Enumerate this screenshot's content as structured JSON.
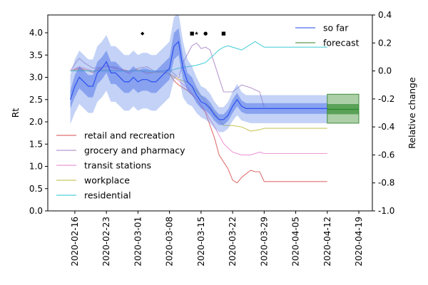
{
  "chart_data": {
    "type": "line",
    "title": "",
    "xlabel": "",
    "ylabel": "Rt",
    "y2label": "Relative change",
    "ylim": [
      0,
      4.4
    ],
    "y2lim": [
      -1.0,
      0.4
    ],
    "xlim": [
      "2020-02-10",
      "2020-04-22"
    ],
    "yticks": [
      "0.0",
      "0.5",
      "1.0",
      "1.5",
      "2.0",
      "2.5",
      "3.0",
      "3.5",
      "4.0"
    ],
    "y2ticks": [
      "-1.0",
      "-0.8",
      "-0.6",
      "-0.4",
      "-0.2",
      "0.0",
      "0.2",
      "0.4"
    ],
    "xticks": [
      "2020-02-16",
      "2020-02-23",
      "2020-03-01",
      "2020-03-08",
      "2020-03-15",
      "2020-03-22",
      "2020-03-29",
      "2020-04-05",
      "2020-04-12",
      "2020-04-19"
    ],
    "grid": false,
    "legend_rt": {
      "placement": "top-right",
      "entries": [
        {
          "label": "so far",
          "color": "#4a6cf0"
        },
        {
          "label": "forecast",
          "color": "#5a9e50"
        }
      ]
    },
    "legend_mobility": {
      "placement": "lower-left",
      "entries": [
        {
          "label": "retail and recreation",
          "color": "#e07070"
        },
        {
          "label": "grocery and pharmacy",
          "color": "#b79ad0"
        },
        {
          "label": "transit stations",
          "color": "#ee9ad8"
        },
        {
          "label": "workplace",
          "color": "#c8c860"
        },
        {
          "label": "residential",
          "color": "#50d0d8"
        }
      ]
    },
    "rt_so_far": {
      "color": "#3355ee",
      "x": [
        "2020-02-15",
        "2020-02-16",
        "2020-02-17",
        "2020-02-18",
        "2020-02-19",
        "2020-02-20",
        "2020-02-21",
        "2020-02-22",
        "2020-02-23",
        "2020-02-24",
        "2020-02-25",
        "2020-02-26",
        "2020-02-27",
        "2020-02-28",
        "2020-02-29",
        "2020-03-01",
        "2020-03-02",
        "2020-03-03",
        "2020-03-04",
        "2020-03-05",
        "2020-03-06",
        "2020-03-07",
        "2020-03-08",
        "2020-03-09",
        "2020-03-10",
        "2020-03-11",
        "2020-03-12",
        "2020-03-13",
        "2020-03-14",
        "2020-03-15",
        "2020-03-16",
        "2020-03-17",
        "2020-03-18",
        "2020-03-19",
        "2020-03-20",
        "2020-03-21",
        "2020-03-22",
        "2020-03-23",
        "2020-03-24",
        "2020-03-25",
        "2020-03-26",
        "2020-04-12"
      ],
      "median": [
        2.5,
        2.8,
        3.0,
        2.9,
        2.8,
        2.8,
        3.1,
        3.2,
        3.35,
        3.1,
        3.1,
        3.0,
        2.9,
        2.9,
        3.0,
        2.9,
        2.95,
        2.95,
        2.9,
        2.9,
        3.0,
        3.1,
        3.2,
        3.7,
        3.8,
        3.2,
        2.9,
        2.8,
        2.6,
        2.45,
        2.4,
        2.3,
        2.15,
        2.05,
        2.05,
        2.15,
        2.35,
        2.5,
        2.35,
        2.3,
        2.3,
        2.3
      ],
      "inner_lo": [
        2.3,
        2.55,
        2.75,
        2.65,
        2.55,
        2.55,
        2.85,
        2.95,
        3.1,
        2.85,
        2.85,
        2.75,
        2.65,
        2.65,
        2.75,
        2.65,
        2.7,
        2.7,
        2.65,
        2.65,
        2.75,
        2.85,
        2.95,
        3.4,
        3.5,
        2.95,
        2.7,
        2.6,
        2.42,
        2.3,
        2.25,
        2.16,
        2.02,
        1.93,
        1.93,
        2.02,
        2.2,
        2.35,
        2.22,
        2.18,
        2.18,
        2.18
      ],
      "inner_hi": [
        2.7,
        3.05,
        3.25,
        3.15,
        3.05,
        3.05,
        3.35,
        3.45,
        3.6,
        3.35,
        3.35,
        3.25,
        3.15,
        3.15,
        3.25,
        3.15,
        3.2,
        3.2,
        3.15,
        3.15,
        3.25,
        3.35,
        3.45,
        4.0,
        4.1,
        3.45,
        3.1,
        3.0,
        2.78,
        2.6,
        2.55,
        2.44,
        2.28,
        2.17,
        2.17,
        2.28,
        2.5,
        2.65,
        2.48,
        2.42,
        2.42,
        2.42
      ],
      "outer_lo": [
        1.95,
        2.2,
        2.4,
        2.3,
        2.2,
        2.2,
        2.45,
        2.55,
        2.7,
        2.45,
        2.45,
        2.35,
        2.25,
        2.25,
        2.35,
        2.25,
        2.3,
        2.3,
        2.25,
        2.25,
        2.35,
        2.45,
        2.55,
        2.95,
        3.05,
        2.55,
        2.4,
        2.35,
        2.2,
        2.1,
        2.05,
        1.97,
        1.85,
        1.77,
        1.77,
        1.85,
        2.02,
        2.15,
        2.03,
        2.0,
        1.97,
        1.97
      ],
      "outer_hi": [
        3.05,
        3.4,
        3.6,
        3.5,
        3.4,
        3.4,
        3.7,
        3.8,
        3.95,
        3.7,
        3.7,
        3.6,
        3.5,
        3.5,
        3.6,
        3.5,
        3.55,
        3.55,
        3.5,
        3.5,
        3.6,
        3.7,
        3.8,
        4.35,
        4.45,
        3.8,
        3.4,
        3.25,
        3.0,
        2.8,
        2.75,
        2.63,
        2.45,
        2.33,
        2.33,
        2.45,
        2.68,
        2.85,
        2.67,
        2.6,
        2.6,
        2.6
      ]
    },
    "rt_forecast": {
      "color": "#2a8a2a",
      "x": [
        "2020-04-12",
        "2020-04-19"
      ],
      "median": [
        2.28,
        2.28
      ],
      "inner_lo": [
        2.17,
        2.17
      ],
      "inner_hi": [
        2.4,
        2.4
      ],
      "outer_lo": [
        1.97,
        1.97
      ],
      "outer_hi": [
        2.62,
        2.62
      ]
    },
    "mobility_series": [
      {
        "name": "retail and recreation",
        "color": "#e07070",
        "x": [
          "2020-02-15",
          "2020-02-17",
          "2020-02-20",
          "2020-02-23",
          "2020-02-25",
          "2020-02-28",
          "2020-03-01",
          "2020-03-03",
          "2020-03-06",
          "2020-03-08",
          "2020-03-09",
          "2020-03-10",
          "2020-03-12",
          "2020-03-14",
          "2020-03-16",
          "2020-03-18",
          "2020-03-19",
          "2020-03-20",
          "2020-03-21",
          "2020-03-22",
          "2020-03-23",
          "2020-03-24",
          "2020-03-26",
          "2020-03-27",
          "2020-03-28",
          "2020-03-29",
          "2020-04-12"
        ],
        "values": [
          0.0,
          0.02,
          -0.01,
          0.04,
          0.02,
          0.0,
          0.01,
          -0.02,
          0.0,
          -0.02,
          -0.07,
          -0.1,
          -0.14,
          -0.2,
          -0.3,
          -0.48,
          -0.6,
          -0.65,
          -0.7,
          -0.78,
          -0.8,
          -0.76,
          -0.71,
          -0.72,
          -0.72,
          -0.79,
          -0.79
        ]
      },
      {
        "name": "grocery and pharmacy",
        "color": "#b79ad0",
        "x": [
          "2020-02-15",
          "2020-02-16",
          "2020-02-17",
          "2020-02-18",
          "2020-02-20",
          "2020-02-23",
          "2020-02-25",
          "2020-02-28",
          "2020-03-01",
          "2020-03-03",
          "2020-03-05",
          "2020-03-08",
          "2020-03-10",
          "2020-03-11",
          "2020-03-12",
          "2020-03-13",
          "2020-03-14",
          "2020-03-15",
          "2020-03-16",
          "2020-03-17",
          "2020-03-18",
          "2020-03-19",
          "2020-03-20",
          "2020-03-22",
          "2020-03-24",
          "2020-03-26",
          "2020-03-28",
          "2020-03-29"
        ],
        "values": [
          0.0,
          0.05,
          0.09,
          0.06,
          0.02,
          0.03,
          0.03,
          -0.02,
          0.02,
          0.03,
          -0.01,
          0.01,
          -0.05,
          0.06,
          0.12,
          0.18,
          0.2,
          0.16,
          0.17,
          0.15,
          0.05,
          -0.05,
          -0.15,
          -0.15,
          -0.1,
          -0.12,
          -0.15,
          -0.26
        ]
      },
      {
        "name": "transit stations",
        "color": "#ee9ad8",
        "x": [
          "2020-02-15",
          "2020-02-17",
          "2020-02-20",
          "2020-02-23",
          "2020-02-25",
          "2020-02-28",
          "2020-03-01",
          "2020-03-03",
          "2020-03-06",
          "2020-03-08",
          "2020-03-10",
          "2020-03-12",
          "2020-03-14",
          "2020-03-16",
          "2020-03-18",
          "2020-03-20",
          "2020-03-22",
          "2020-03-24",
          "2020-03-26",
          "2020-03-28",
          "2020-03-29",
          "2020-04-12"
        ],
        "values": [
          0.0,
          0.03,
          0.0,
          0.04,
          0.01,
          -0.01,
          0.01,
          -0.02,
          0.0,
          -0.02,
          -0.07,
          -0.12,
          -0.2,
          -0.29,
          -0.4,
          -0.52,
          -0.58,
          -0.6,
          -0.6,
          -0.58,
          -0.59,
          -0.59
        ]
      },
      {
        "name": "workplace",
        "color": "#c8c860",
        "x": [
          "2020-02-15",
          "2020-02-17",
          "2020-02-20",
          "2020-02-23",
          "2020-02-25",
          "2020-02-28",
          "2020-03-01",
          "2020-03-03",
          "2020-03-06",
          "2020-03-08",
          "2020-03-10",
          "2020-03-12",
          "2020-03-14",
          "2020-03-16",
          "2020-03-18",
          "2020-03-20",
          "2020-03-22",
          "2020-03-24",
          "2020-03-26",
          "2020-03-28",
          "2020-03-29",
          "2020-04-12"
        ],
        "values": [
          0.0,
          0.01,
          0.0,
          0.01,
          0.0,
          0.0,
          0.01,
          -0.01,
          -0.01,
          -0.02,
          -0.06,
          -0.08,
          -0.14,
          -0.22,
          -0.3,
          -0.39,
          -0.39,
          -0.4,
          -0.43,
          -0.42,
          -0.41,
          -0.41
        ]
      },
      {
        "name": "residential",
        "color": "#50d0d8",
        "x": [
          "2020-02-15",
          "2020-02-17",
          "2020-02-20",
          "2020-02-23",
          "2020-02-25",
          "2020-02-28",
          "2020-03-01",
          "2020-03-03",
          "2020-03-06",
          "2020-03-08",
          "2020-03-10",
          "2020-03-12",
          "2020-03-14",
          "2020-03-16",
          "2020-03-18",
          "2020-03-19",
          "2020-03-20",
          "2020-03-21",
          "2020-03-22",
          "2020-03-24",
          "2020-03-26",
          "2020-03-27",
          "2020-03-28",
          "2020-03-29",
          "2020-04-12"
        ],
        "values": [
          0.0,
          0.0,
          0.0,
          0.0,
          0.0,
          0.0,
          0.0,
          0.0,
          0.0,
          0.0,
          0.02,
          0.03,
          0.04,
          0.06,
          0.12,
          0.15,
          0.17,
          0.18,
          0.17,
          0.15,
          0.19,
          0.21,
          0.19,
          0.17,
          0.17
        ]
      }
    ],
    "markers": [
      {
        "x": "2020-03-02",
        "y": 4.0,
        "symbol": "◆"
      },
      {
        "x": "2020-03-13",
        "y": 4.0,
        "symbol": "■"
      },
      {
        "x": "2020-03-14",
        "y": 4.0,
        "symbol": "★"
      },
      {
        "x": "2020-03-16",
        "y": 4.0,
        "symbol": "●"
      },
      {
        "x": "2020-03-20",
        "y": 4.0,
        "symbol": "■"
      }
    ]
  }
}
